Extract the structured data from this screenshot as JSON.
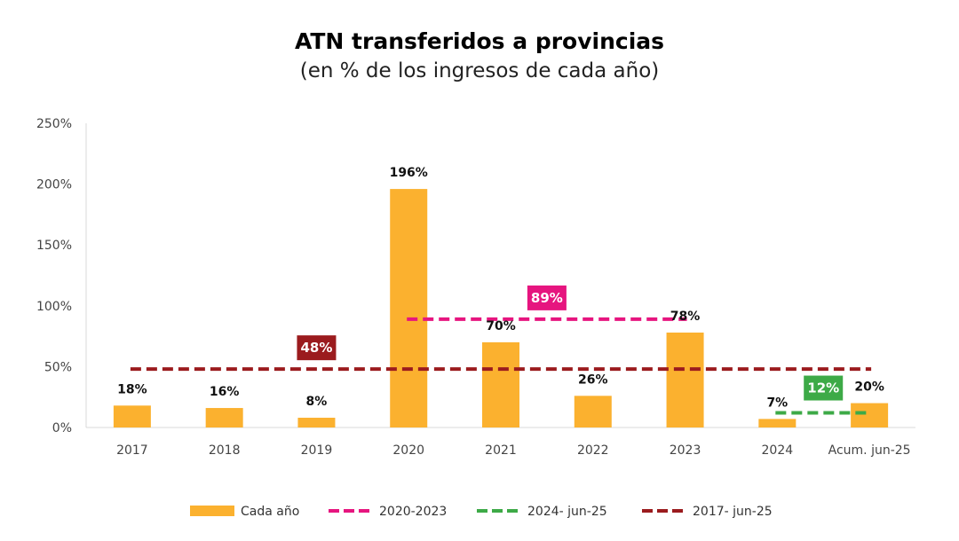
{
  "chart_data": {
    "type": "bar",
    "title": "ATN transferidos a provincias",
    "subtitle": "(en % de los ingresos de cada año)",
    "xlabel": "",
    "ylabel": "",
    "categories": [
      "2017",
      "2018",
      "2019",
      "2020",
      "2021",
      "2022",
      "2023",
      "2024",
      "Acum. jun-25"
    ],
    "ylim": [
      0,
      250
    ],
    "yticks": [
      "0%",
      "50%",
      "100%",
      "150%",
      "200%",
      "250%"
    ],
    "ytick_values": [
      0,
      50,
      100,
      150,
      200,
      250
    ],
    "grid": false,
    "legend_position": "bottom",
    "series": [
      {
        "name": "Cada año",
        "type": "bar",
        "color": "#FBB12F",
        "values": [
          18,
          16,
          8,
          196,
          70,
          26,
          78,
          7,
          20
        ],
        "labels": [
          "18%",
          "16%",
          "8%",
          "196%",
          "70%",
          "26%",
          "78%",
          "7%",
          "20%"
        ]
      },
      {
        "name": "2020-2023",
        "type": "dashed-line",
        "color": "#E6157F",
        "value": 89,
        "label": "89%",
        "from": "2020",
        "to": "2023"
      },
      {
        "name": "2024- jun-25",
        "type": "dashed-line",
        "color": "#3DAA47",
        "value": 12,
        "label": "12%",
        "from": "2024",
        "to": "Acum. jun-25"
      },
      {
        "name": "2017- jun-25",
        "type": "dashed-line",
        "color": "#9B1B1E",
        "value": 48,
        "label": "48%",
        "from": "2017",
        "to": "Acum. jun-25"
      }
    ]
  }
}
